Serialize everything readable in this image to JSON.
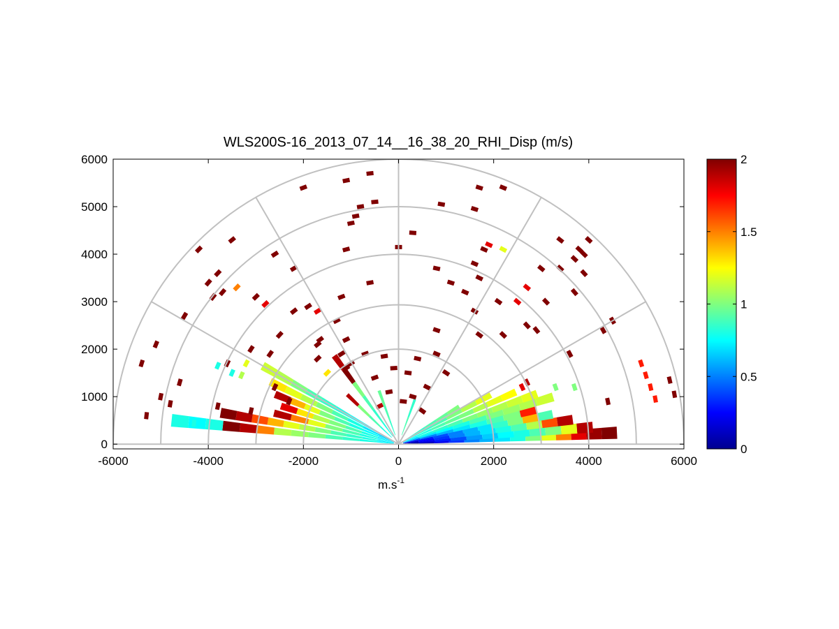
{
  "chart_data": {
    "type": "heatmap",
    "subtype": "polar-rhi-sector",
    "title": "WLS200S-16_2013_07_14__16_38_20_RHI_Disp (m/s)",
    "xlabel": "m.s",
    "xlabel_sup": "-1",
    "ylabel": "",
    "xlim": [
      -6000,
      6000
    ],
    "ylim": [
      -100,
      6000
    ],
    "xticks": [
      -6000,
      -4000,
      -2000,
      0,
      2000,
      4000,
      6000
    ],
    "xtick_labels": [
      "-6000",
      "-4000",
      "-2000",
      "0",
      "2000",
      "4000",
      "6000"
    ],
    "yticks": [
      0,
      1000,
      2000,
      3000,
      4000,
      5000,
      6000
    ],
    "ytick_labels": [
      "0",
      "1000",
      "2000",
      "3000",
      "4000",
      "5000",
      "6000"
    ],
    "polar_grid": {
      "range_rings": [
        2000,
        3000,
        4000,
        5000,
        6000
      ],
      "spokes_deg": [
        0,
        30,
        60,
        90,
        120,
        150,
        180
      ]
    },
    "colorbar": {
      "colormap": "jet",
      "limits": [
        0,
        2
      ],
      "ticks": [
        0,
        0.5,
        1,
        1.5,
        2
      ],
      "tick_labels": [
        "0",
        "0.5",
        "1",
        "1.5",
        "2"
      ]
    },
    "beams": [
      {
        "az": 3,
        "r0": 100,
        "r1": 4600,
        "v": [
          0.05,
          0.1,
          0.2,
          0.35,
          0.5,
          0.6,
          0.7,
          0.8,
          1.0,
          1.2,
          1.5,
          1.8,
          1.95,
          2.0
        ]
      },
      {
        "az": 5,
        "r0": 100,
        "r1": 4100,
        "v": [
          0.1,
          0.2,
          0.3,
          0.4,
          0.55,
          0.65,
          0.75,
          0.8,
          0.9,
          1.0,
          1.2,
          1.9
        ]
      },
      {
        "az": 8,
        "r0": 100,
        "r1": 3700,
        "v": [
          0.15,
          0.25,
          0.35,
          0.5,
          0.6,
          0.7,
          0.8,
          0.9,
          1.1,
          1.6,
          1.9
        ]
      },
      {
        "az": 11,
        "r0": 100,
        "r1": 3300,
        "v": [
          0.2,
          0.3,
          0.4,
          0.5,
          0.6,
          0.7,
          0.85,
          1.0,
          1.4,
          0.9
        ]
      },
      {
        "az": 14,
        "r0": 100,
        "r1": 3000,
        "v": [
          0.4,
          0.5,
          0.6,
          0.7,
          0.8,
          0.9,
          1.0,
          1.7
        ]
      },
      {
        "az": 17,
        "r0": 100,
        "r1": 3400,
        "v": [
          0.6,
          0.7,
          0.75,
          0.8,
          0.9,
          1.0,
          1.05,
          1.1,
          1.15
        ]
      },
      {
        "az": 20,
        "r0": 100,
        "r1": 3100,
        "v": [
          0.7,
          0.8,
          0.85,
          0.9,
          1.0,
          1.05,
          1.1,
          1.15,
          1.2
        ]
      },
      {
        "az": 24,
        "r0": 100,
        "r1": 2700,
        "v": [
          0.75,
          0.8,
          0.9,
          0.95,
          1.0,
          1.1,
          1.2,
          1.25
        ]
      },
      {
        "az": 28,
        "r0": 100,
        "r1": 2200,
        "v": [
          0.8,
          0.85,
          0.9,
          1.0,
          1.1,
          1.2
        ]
      },
      {
        "az": 32,
        "r0": 100,
        "r1": 1500,
        "v": [
          0.8,
          0.85,
          0.9,
          0.95,
          1.0
        ]
      },
      {
        "az": 150,
        "r0": 100,
        "r1": 3300,
        "v": [
          0.6,
          0.7,
          0.75,
          0.8,
          0.85,
          0.9,
          1.0,
          1.1,
          1.15
        ]
      },
      {
        "az": 154,
        "r0": 100,
        "r1": 3000,
        "v": [
          0.65,
          0.7,
          0.8,
          0.9,
          1.0,
          1.1,
          1.2,
          1.3
        ]
      },
      {
        "az": 158,
        "r0": 100,
        "r1": 2800,
        "v": [
          0.7,
          0.75,
          0.8,
          0.9,
          1.0,
          1.2,
          1.4,
          1.9
        ]
      },
      {
        "az": 162,
        "r0": 100,
        "r1": 2600,
        "v": [
          0.7,
          0.8,
          0.9,
          1.0,
          1.1,
          1.3,
          1.8
        ]
      },
      {
        "az": 166,
        "r0": 100,
        "r1": 2700,
        "v": [
          0.75,
          0.8,
          0.9,
          1.0,
          1.2,
          1.5,
          1.9
        ]
      },
      {
        "az": 170,
        "r0": 100,
        "r1": 3800,
        "v": [
          0.7,
          0.8,
          0.85,
          0.9,
          1.0,
          1.1,
          1.2,
          1.4,
          1.6,
          1.9,
          2.0
        ]
      },
      {
        "az": 174,
        "r0": 100,
        "r1": 4800,
        "v": [
          0.75,
          0.8,
          0.85,
          0.9,
          1.0,
          1.05,
          1.1,
          1.5,
          1.9,
          2.0,
          0.8,
          0.75,
          0.8
        ]
      },
      {
        "az": 136,
        "r0": 200,
        "r1": 1500,
        "v": [
          0.8,
          0.9,
          1.0,
          1.9
        ]
      },
      {
        "az": 126,
        "r0": 200,
        "r1": 2300,
        "v": [
          0.8,
          0.85,
          0.9,
          1.0,
          2.0,
          1.9
        ]
      },
      {
        "az": 110,
        "r0": 200,
        "r1": 1200,
        "v": [
          0.85,
          0.9,
          0.95
        ]
      },
      {
        "az": 70,
        "r0": 200,
        "r1": 1000,
        "v": [
          0.9,
          0.85
        ]
      }
    ],
    "scatter_cells": [
      {
        "x": -4600,
        "y": 1300,
        "v": 2
      },
      {
        "x": -5400,
        "y": 1700,
        "v": 2
      },
      {
        "x": -5100,
        "y": 2100,
        "v": 2
      },
      {
        "x": -5000,
        "y": 1000,
        "v": 2
      },
      {
        "x": -5300,
        "y": 600,
        "v": 2
      },
      {
        "x": -4200,
        "y": 4100,
        "v": 2
      },
      {
        "x": -4000,
        "y": 3400,
        "v": 2
      },
      {
        "x": -3800,
        "y": 3600,
        "v": 2
      },
      {
        "x": -3900,
        "y": 3100,
        "v": 2
      },
      {
        "x": -3700,
        "y": 3200,
        "v": 2
      },
      {
        "x": -3400,
        "y": 3300,
        "v": 1.5
      },
      {
        "x": -3000,
        "y": 3100,
        "v": 2
      },
      {
        "x": -2800,
        "y": 2950,
        "v": 1.8
      },
      {
        "x": -2700,
        "y": 1900,
        "v": 2
      },
      {
        "x": -3500,
        "y": 4300,
        "v": 2
      },
      {
        "x": -2600,
        "y": 4000,
        "v": 2
      },
      {
        "x": -2200,
        "y": 3700,
        "v": 2
      },
      {
        "x": -2200,
        "y": 2800,
        "v": 2
      },
      {
        "x": -1900,
        "y": 2900,
        "v": 2
      },
      {
        "x": -1700,
        "y": 2800,
        "v": 1.8
      },
      {
        "x": -1300,
        "y": 2600,
        "v": 2
      },
      {
        "x": -1700,
        "y": 2100,
        "v": 2
      },
      {
        "x": -1650,
        "y": 2200,
        "v": 2
      },
      {
        "x": -1700,
        "y": 1800,
        "v": 2
      },
      {
        "x": -1100,
        "y": 2200,
        "v": 2
      },
      {
        "x": -1200,
        "y": 1900,
        "v": 2
      },
      {
        "x": -1000,
        "y": 1700,
        "v": 2
      },
      {
        "x": -1100,
        "y": 1600,
        "v": 2
      },
      {
        "x": -2500,
        "y": 2300,
        "v": 2
      },
      {
        "x": -3100,
        "y": 2000,
        "v": 2
      },
      {
        "x": -3600,
        "y": 1700,
        "v": 2
      },
      {
        "x": -4500,
        "y": 2700,
        "v": 2
      },
      {
        "x": -4800,
        "y": 850,
        "v": 2
      },
      {
        "x": -3800,
        "y": 800,
        "v": 2
      },
      {
        "x": -3100,
        "y": 700,
        "v": 2
      },
      {
        "x": -2600,
        "y": 1200,
        "v": 2
      },
      {
        "x": -2300,
        "y": 900,
        "v": 2
      },
      {
        "x": -2000,
        "y": 5400,
        "v": 2
      },
      {
        "x": -1100,
        "y": 5550,
        "v": 2
      },
      {
        "x": -600,
        "y": 5700,
        "v": 2
      },
      {
        "x": -800,
        "y": 5000,
        "v": 2
      },
      {
        "x": -900,
        "y": 4800,
        "v": 2
      },
      {
        "x": -1000,
        "y": 4650,
        "v": 2
      },
      {
        "x": -1100,
        "y": 4100,
        "v": 2
      },
      {
        "x": -600,
        "y": 3400,
        "v": 2
      },
      {
        "x": -1200,
        "y": 3100,
        "v": 2
      },
      {
        "x": -500,
        "y": 5100,
        "v": 2
      },
      {
        "x": 0,
        "y": 4150,
        "v": 2
      },
      {
        "x": 300,
        "y": 4450,
        "v": 2
      },
      {
        "x": 900,
        "y": 5050,
        "v": 2
      },
      {
        "x": 1700,
        "y": 5400,
        "v": 2
      },
      {
        "x": 2200,
        "y": 5400,
        "v": 2
      },
      {
        "x": 1600,
        "y": 4950,
        "v": 2
      },
      {
        "x": 1800,
        "y": 4100,
        "v": 2
      },
      {
        "x": 1900,
        "y": 4200,
        "v": 1.8
      },
      {
        "x": 2200,
        "y": 4100,
        "v": 1.2
      },
      {
        "x": 800,
        "y": 3700,
        "v": 2
      },
      {
        "x": 1100,
        "y": 3400,
        "v": 2
      },
      {
        "x": 1700,
        "y": 3500,
        "v": 2
      },
      {
        "x": 1600,
        "y": 3800,
        "v": 2
      },
      {
        "x": 1400,
        "y": 3200,
        "v": 2
      },
      {
        "x": 2100,
        "y": 3000,
        "v": 2
      },
      {
        "x": 2500,
        "y": 3000,
        "v": 1.8
      },
      {
        "x": 2700,
        "y": 3300,
        "v": 1.8
      },
      {
        "x": 3000,
        "y": 3700,
        "v": 2
      },
      {
        "x": 3100,
        "y": 3000,
        "v": 2
      },
      {
        "x": 3400,
        "y": 4300,
        "v": 2
      },
      {
        "x": 3700,
        "y": 3200,
        "v": 2
      },
      {
        "x": 3400,
        "y": 3700,
        "v": 2
      },
      {
        "x": 3700,
        "y": 3900,
        "v": 2
      },
      {
        "x": 3800,
        "y": 4100,
        "v": 2
      },
      {
        "x": 3900,
        "y": 4000,
        "v": 2
      },
      {
        "x": 4000,
        "y": 4300,
        "v": 2
      },
      {
        "x": 3900,
        "y": 3600,
        "v": 2
      },
      {
        "x": 4300,
        "y": 2400,
        "v": 2
      },
      {
        "x": 4500,
        "y": 2600,
        "v": 2
      },
      {
        "x": 2700,
        "y": 2500,
        "v": 2
      },
      {
        "x": 2900,
        "y": 2400,
        "v": 2
      },
      {
        "x": 3600,
        "y": 1900,
        "v": 2
      },
      {
        "x": 2200,
        "y": 2300,
        "v": 2
      },
      {
        "x": 800,
        "y": 2400,
        "v": 2
      },
      {
        "x": 1600,
        "y": 2800,
        "v": 2
      },
      {
        "x": 1700,
        "y": 2300,
        "v": 2
      },
      {
        "x": 3700,
        "y": 1200,
        "v": 1.0
      },
      {
        "x": 4400,
        "y": 900,
        "v": 2
      },
      {
        "x": 5100,
        "y": 1700,
        "v": 1.7
      },
      {
        "x": 5200,
        "y": 1450,
        "v": 1.7
      },
      {
        "x": 5300,
        "y": 1200,
        "v": 1.7
      },
      {
        "x": 5400,
        "y": 950,
        "v": 1.7
      },
      {
        "x": 5700,
        "y": 1350,
        "v": 2
      },
      {
        "x": 5800,
        "y": 1050,
        "v": 2
      },
      {
        "x": -4600,
        "y": 480,
        "v": 0.8
      },
      {
        "x": -4300,
        "y": 440,
        "v": 0.8
      },
      {
        "x": -3500,
        "y": 1500,
        "v": 0.8
      },
      {
        "x": -3300,
        "y": 1450,
        "v": 1.1
      },
      {
        "x": -3200,
        "y": 1700,
        "v": 1.2
      },
      {
        "x": -3800,
        "y": 1650,
        "v": 0.8
      },
      {
        "x": 3300,
        "y": 1200,
        "v": 1.0
      },
      {
        "x": 2700,
        "y": 1300,
        "v": 1.9
      },
      {
        "x": 2600,
        "y": 1200,
        "v": 1.8
      },
      {
        "x": -300,
        "y": 1850,
        "v": 2
      },
      {
        "x": 400,
        "y": 1800,
        "v": 2
      },
      {
        "x": -100,
        "y": 1600,
        "v": 2
      },
      {
        "x": 200,
        "y": 1500,
        "v": 2
      },
      {
        "x": -500,
        "y": 1400,
        "v": 2
      },
      {
        "x": 600,
        "y": 1200,
        "v": 2
      },
      {
        "x": -200,
        "y": 1100,
        "v": 2
      },
      {
        "x": 100,
        "y": 900,
        "v": 2
      },
      {
        "x": 300,
        "y": 1000,
        "v": 2
      },
      {
        "x": -400,
        "y": 800,
        "v": 1.9
      },
      {
        "x": 500,
        "y": 700,
        "v": 2
      },
      {
        "x": 800,
        "y": 1900,
        "v": 2
      },
      {
        "x": -700,
        "y": 1900,
        "v": 2
      },
      {
        "x": 1000,
        "y": 1500,
        "v": 2
      },
      {
        "x": -1500,
        "y": 1500,
        "v": 1.3
      }
    ]
  }
}
